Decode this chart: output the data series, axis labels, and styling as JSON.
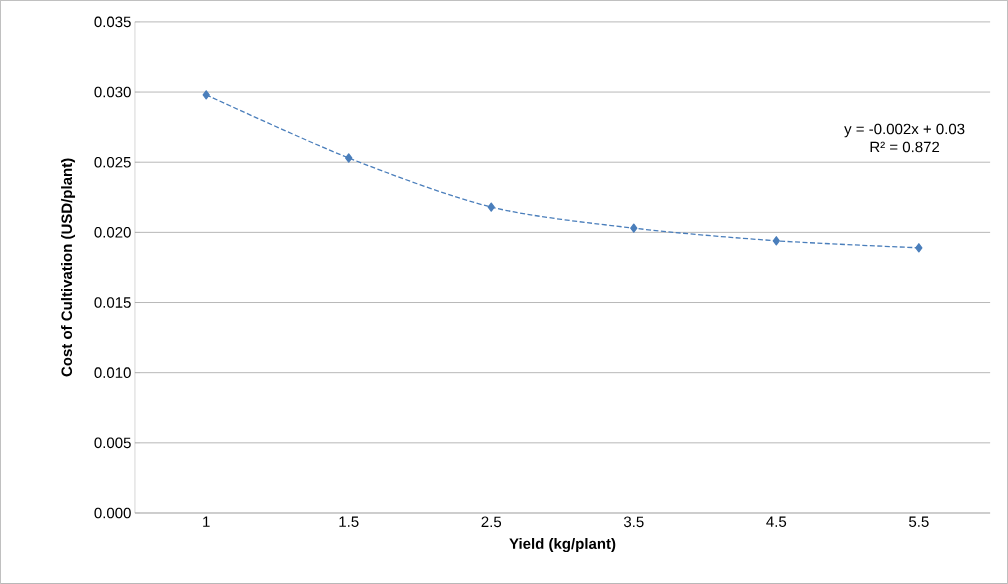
{
  "chart_data": {
    "type": "line",
    "categories": [
      "1",
      "1.5",
      "2.5",
      "3.5",
      "4.5",
      "5.5"
    ],
    "values": [
      0.0298,
      0.0253,
      0.0218,
      0.0203,
      0.0194,
      0.0189
    ],
    "color": "#4a7ebb",
    "xlabel": "Yield (kg/plant)",
    "ylabel": "Cost of Cultivation (USD/plant)",
    "ylim": [
      0,
      0.035
    ],
    "yticks": [
      {
        "value": 0,
        "label": "0.000"
      },
      0.005,
      {
        "value": 0.01,
        "label": "0.010"
      },
      0.015,
      {
        "value": 0.02,
        "label": "0.020"
      },
      0.025,
      {
        "value": 0.03,
        "label": "0.030"
      },
      0.035
    ],
    "grid": "y",
    "marker": "diamond",
    "line_style": "dashed",
    "annotations": [
      "y = -0.002x + 0.03",
      "R² = 0.872"
    ]
  }
}
